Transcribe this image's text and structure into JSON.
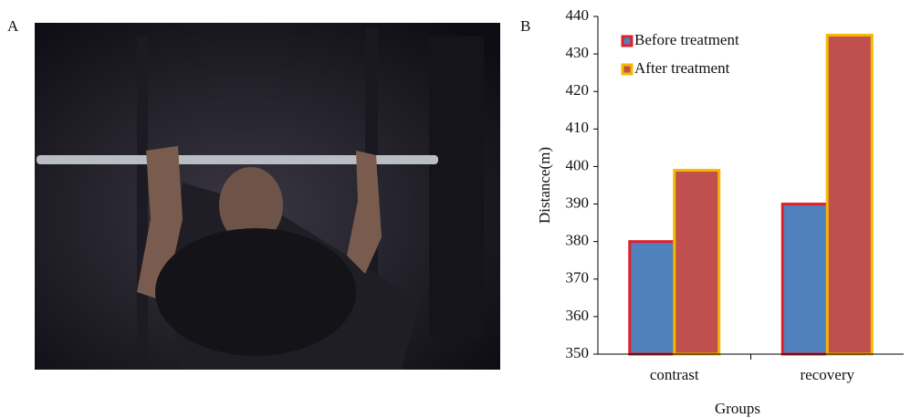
{
  "labels": [
    "A",
    "B"
  ],
  "chart_data": {
    "type": "bar",
    "xlabel": "Groups",
    "ylabel": "Distance(m)",
    "categories": [
      "contrast",
      "recovery"
    ],
    "series": [
      {
        "name": "Before treatment",
        "color": "#4f81bd",
        "edgecolor": "#e0202a",
        "values": [
          380,
          390
        ]
      },
      {
        "name": "After treatment",
        "color": "#c0504d",
        "edgecolor": "#f5b800",
        "values": [
          399,
          435
        ]
      }
    ],
    "ylim": [
      350,
      440
    ],
    "yticks": [
      350,
      360,
      370,
      380,
      390,
      400,
      410,
      420,
      430,
      440
    ],
    "legend": "upper left"
  }
}
